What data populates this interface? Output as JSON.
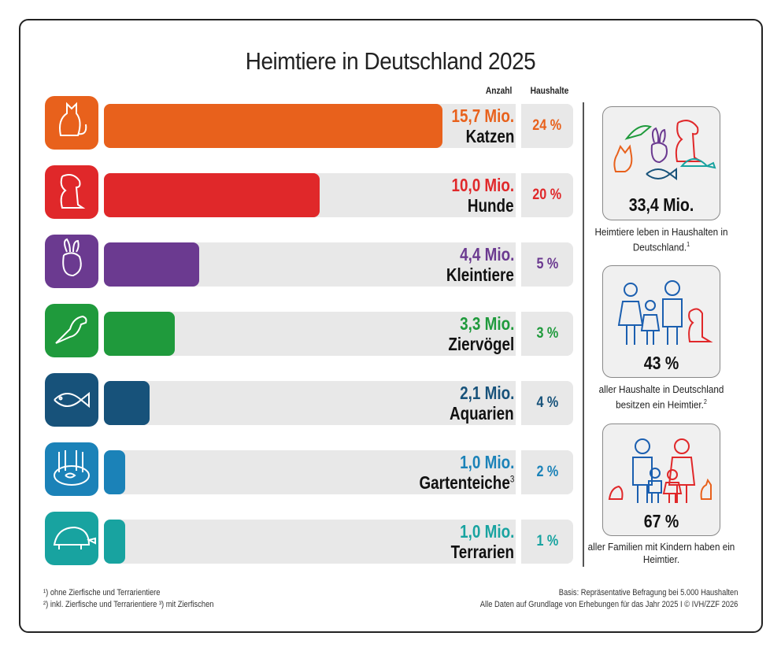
{
  "title": "Heimtiere in Deutschland 2025",
  "column_headers": {
    "count": "Anzahl",
    "households": "Haushalte"
  },
  "chart_data": {
    "type": "bar",
    "orientation": "horizontal",
    "title": "Heimtiere in Deutschland 2025",
    "unit": "Mio.",
    "categories": [
      "Katzen",
      "Hunde",
      "Kleintiere",
      "Ziervögel",
      "Aquarien",
      "Gartenteiche",
      "Terrarien"
    ],
    "values": [
      15.7,
      10.0,
      4.4,
      3.3,
      2.1,
      1.0,
      1.0
    ],
    "value_labels": [
      "15,7 Mio.",
      "10,0 Mio.",
      "4,4 Mio.",
      "3,3 Mio.",
      "2,1 Mio.",
      "1,0 Mio.",
      "1,0 Mio."
    ],
    "households_pct_labels": [
      "24 %",
      "20 %",
      "5 %",
      "3 %",
      "4 %",
      "2 %",
      "1 %"
    ],
    "households_pct": [
      24,
      20,
      5,
      3,
      4,
      2,
      1
    ],
    "footnote_marks": [
      "",
      "",
      "",
      "",
      "",
      "3",
      ""
    ],
    "colors": [
      "#e8611c",
      "#e0282a",
      "#6b3a90",
      "#1f9a3c",
      "#17527a",
      "#1b82b8",
      "#18a3a0"
    ],
    "icons": [
      "cat-icon",
      "dog-icon",
      "rabbit-icon",
      "parrot-icon",
      "fish-icon",
      "pond-icon",
      "turtle-icon"
    ],
    "grid": false
  },
  "side_panels": [
    {
      "number": "33,4 Mio.",
      "text": "Heimtiere leben in Haushalten in Deutschland.",
      "mark": "1",
      "icon": "pets-group-icon"
    },
    {
      "number": "43 %",
      "text": "aller Haushalte in Deutschland besitzen ein Heimtier.",
      "mark": "2",
      "icon": "family-dog-icon"
    },
    {
      "number": "67 %",
      "text": "aller Familien mit Kindern haben ein Heimtier.",
      "mark": "",
      "icon": "family-children-pets-icon"
    }
  ],
  "footnotes": {
    "left": [
      "¹) ohne Zierfische und Terrarientiere",
      "²) inkl. Zierfische und Terrarientiere  ³) mit Zierfischen"
    ],
    "right": [
      "Basis: Repräsentative Befragung bei 5.000 Haushalten",
      "Alle Daten auf Grundlage von Erhebungen für das Jahr 2025 I © IVH/ZZF 2026"
    ]
  }
}
